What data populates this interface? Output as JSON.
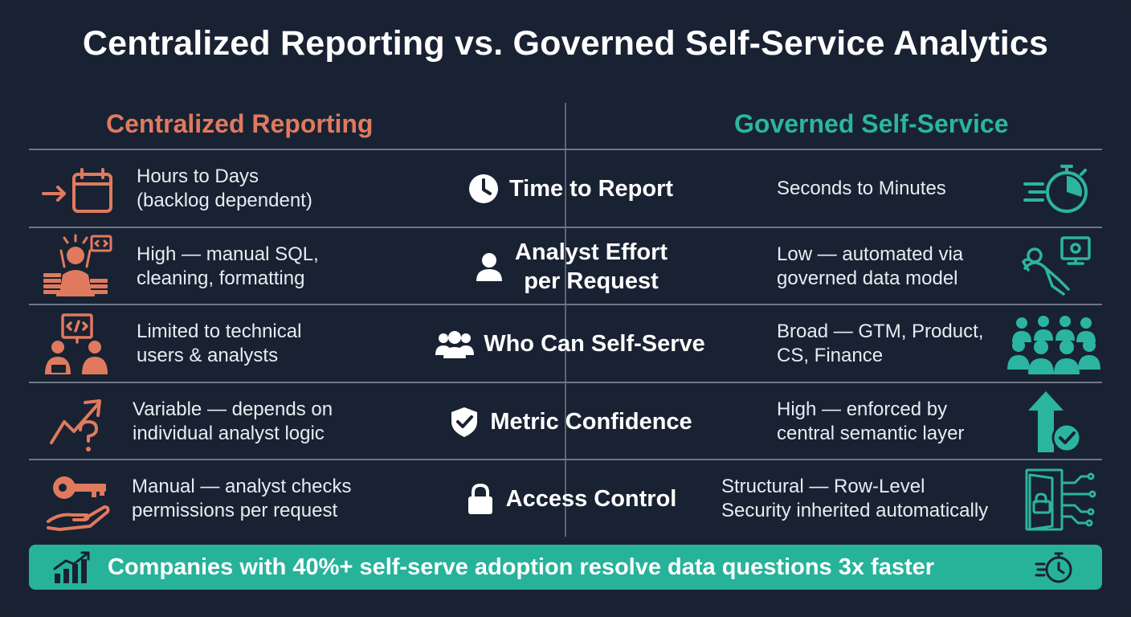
{
  "title": "Centralized Reporting vs. Governed Self-Service Analytics",
  "columns": {
    "left": "Centralized Reporting",
    "right": "Governed Self-Service"
  },
  "colors": {
    "background": "#182232",
    "centralized_accent": "#e07a5f",
    "self_service_accent": "#2bb5a0",
    "footer": "#27b39a"
  },
  "rows": [
    {
      "dimension": [
        "Time to Report"
      ],
      "dimension_icon": "clock-icon",
      "centralized": [
        "Hours to Days",
        "(backlog dependent)"
      ],
      "centralized_icon": "calendar-arrow-icon",
      "self_service": [
        "Seconds to Minutes"
      ],
      "self_service_icon": "stopwatch-icon"
    },
    {
      "dimension": [
        "Analyst Effort",
        "per Request"
      ],
      "dimension_icon": "user-icon",
      "centralized": [
        "High — manual SQL,",
        "cleaning, formatting"
      ],
      "centralized_icon": "stressed-analyst-icon",
      "self_service": [
        "Low — automated via",
        "governed data model"
      ],
      "self_service_icon": "relaxed-analyst-icon"
    },
    {
      "dimension": [
        "Who Can Self-Serve"
      ],
      "dimension_icon": "users-group-icon",
      "centralized": [
        "Limited to technical",
        "users & analysts"
      ],
      "centralized_icon": "technical-users-icon",
      "self_service": [
        "Broad — GTM, Product,",
        "CS, Finance"
      ],
      "self_service_icon": "crowd-icon"
    },
    {
      "dimension": [
        "Metric Confidence"
      ],
      "dimension_icon": "shield-check-icon",
      "centralized": [
        "Variable — depends on",
        "individual analyst logic"
      ],
      "centralized_icon": "trend-question-icon",
      "self_service": [
        "High — enforced by",
        "central semantic layer"
      ],
      "self_service_icon": "arrow-up-check-icon"
    },
    {
      "dimension": [
        "Access Control"
      ],
      "dimension_icon": "lock-icon",
      "centralized": [
        "Manual — analyst checks",
        "permissions per request"
      ],
      "centralized_icon": "key-hand-icon",
      "self_service": [
        "Structural — Row-Level",
        "Security inherited automatically"
      ],
      "self_service_icon": "secure-door-icon"
    }
  ],
  "footer": {
    "text": "Companies with 40%+ self-serve adoption resolve data questions 3x faster",
    "left_icon": "growth-chart-icon",
    "right_icon": "stopwatch-icon"
  }
}
